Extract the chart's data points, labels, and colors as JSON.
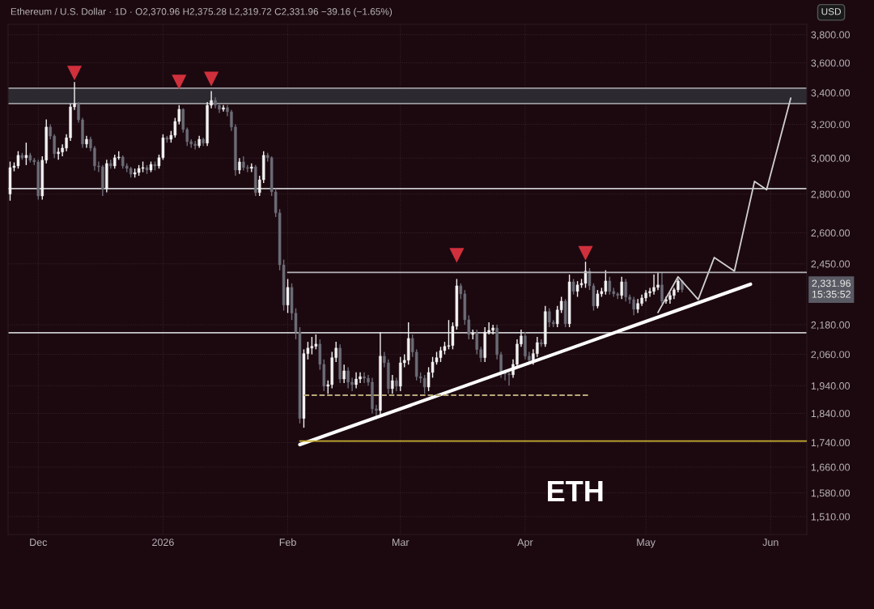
{
  "chart_data": {
    "type": "candlestick",
    "title": "Ethereum / U.S. Dollar · 1D · O2,370.96 H2,375.28 L2,319.72 C2,331.96 −39.16 (−1.65%)",
    "ylabel": "USD",
    "x": [
      "2025-11-24",
      "2025-11-25",
      "2025-11-26",
      "2025-11-27",
      "2025-11-28",
      "2025-11-29",
      "2025-11-30",
      "2025-12-01",
      "2025-12-02",
      "2025-12-03",
      "2025-12-04",
      "2025-12-05",
      "2025-12-06",
      "2025-12-07",
      "2025-12-08",
      "2025-12-09",
      "2025-12-10",
      "2025-12-11",
      "2025-12-12",
      "2025-12-13",
      "2025-12-14",
      "2025-12-15",
      "2025-12-16",
      "2025-12-17",
      "2025-12-18",
      "2025-12-19",
      "2025-12-20",
      "2025-12-21",
      "2025-12-22",
      "2025-12-23",
      "2025-12-24",
      "2025-12-25",
      "2025-12-26",
      "2025-12-27",
      "2025-12-28",
      "2025-12-29",
      "2025-12-30",
      "2025-12-31",
      "2026-01-01",
      "2026-01-02",
      "2026-01-03",
      "2026-01-04",
      "2026-01-05",
      "2026-01-06",
      "2026-01-07",
      "2026-01-08",
      "2026-01-09",
      "2026-01-10",
      "2026-01-11",
      "2026-01-12",
      "2026-01-13",
      "2026-01-14",
      "2026-01-15",
      "2026-01-16",
      "2026-01-17",
      "2026-01-18",
      "2026-01-19",
      "2026-01-20",
      "2026-01-21",
      "2026-01-22",
      "2026-01-23",
      "2026-01-24",
      "2026-01-25",
      "2026-01-26",
      "2026-01-27",
      "2026-01-28",
      "2026-01-29",
      "2026-01-30",
      "2026-01-31",
      "2026-02-01",
      "2026-02-02",
      "2026-02-03",
      "2026-02-04",
      "2026-02-05",
      "2026-02-06",
      "2026-02-07",
      "2026-02-08",
      "2026-02-09",
      "2026-02-10",
      "2026-02-11",
      "2026-02-12",
      "2026-02-13",
      "2026-02-14",
      "2026-02-15",
      "2026-02-16",
      "2026-02-17",
      "2026-02-18",
      "2026-02-19",
      "2026-02-20",
      "2026-02-21",
      "2026-02-22",
      "2026-02-23",
      "2026-02-24",
      "2026-02-25",
      "2026-02-26",
      "2026-02-27",
      "2026-02-28",
      "2026-03-01",
      "2026-03-02",
      "2026-03-03",
      "2026-03-04",
      "2026-03-05",
      "2026-03-06",
      "2026-03-07",
      "2026-03-08",
      "2026-03-09",
      "2026-03-10",
      "2026-03-11",
      "2026-03-12",
      "2026-03-13",
      "2026-03-14",
      "2026-03-15",
      "2026-03-16",
      "2026-03-17",
      "2026-03-18",
      "2026-03-19",
      "2026-03-20",
      "2026-03-21",
      "2026-03-22",
      "2026-03-23",
      "2026-03-24",
      "2026-03-25",
      "2026-03-26",
      "2026-03-27",
      "2026-03-28",
      "2026-03-29",
      "2026-03-30",
      "2026-03-31",
      "2026-04-01",
      "2026-04-02",
      "2026-04-03",
      "2026-04-04",
      "2026-04-05",
      "2026-04-06",
      "2026-04-07",
      "2026-04-08",
      "2026-04-09",
      "2026-04-10",
      "2026-04-11",
      "2026-04-12",
      "2026-04-13",
      "2026-04-14",
      "2026-04-15",
      "2026-04-16",
      "2026-04-17",
      "2026-04-18",
      "2026-04-19",
      "2026-04-20",
      "2026-04-21",
      "2026-04-22",
      "2026-04-23",
      "2026-04-24",
      "2026-04-25",
      "2026-04-26",
      "2026-04-27",
      "2026-04-28",
      "2026-04-29",
      "2026-04-30",
      "2026-05-01",
      "2026-05-02",
      "2026-05-03",
      "2026-05-04",
      "2026-05-05",
      "2026-05-06",
      "2026-05-07",
      "2026-05-08",
      "2026-05-09",
      "2026-05-10"
    ],
    "ohlc": [
      [
        2800,
        2980,
        2765,
        2946
      ],
      [
        2946,
        2975,
        2925,
        2955
      ],
      [
        2955,
        3040,
        2940,
        3016
      ],
      [
        3016,
        3030,
        2990,
        3002
      ],
      [
        3002,
        3090,
        2960,
        3016
      ],
      [
        3016,
        3030,
        2975,
        2988
      ],
      [
        2988,
        3000,
        2960,
        2978
      ],
      [
        2978,
        2990,
        2770,
        2790
      ],
      [
        2790,
        3010,
        2770,
        2988
      ],
      [
        2988,
        3230,
        2970,
        3184
      ],
      [
        3184,
        3200,
        3110,
        3129
      ],
      [
        3129,
        3140,
        3000,
        3025
      ],
      [
        3025,
        3060,
        2990,
        3035
      ],
      [
        3035,
        3080,
        3010,
        3058
      ],
      [
        3058,
        3140,
        3040,
        3119
      ],
      [
        3119,
        3330,
        3100,
        3309
      ],
      [
        3309,
        3470,
        3290,
        3330
      ],
      [
        3330,
        3340,
        3210,
        3228
      ],
      [
        3228,
        3240,
        3060,
        3082
      ],
      [
        3082,
        3130,
        3060,
        3110
      ],
      [
        3110,
        3125,
        3040,
        3058
      ],
      [
        3058,
        3070,
        2930,
        2955
      ],
      [
        2955,
        2980,
        2920,
        2950
      ],
      [
        2950,
        2960,
        2790,
        2829
      ],
      [
        2829,
        2990,
        2810,
        2969
      ],
      [
        2969,
        2990,
        2940,
        2955
      ],
      [
        2955,
        3020,
        2940,
        3002
      ],
      [
        3002,
        3040,
        2990,
        3006
      ],
      [
        3006,
        3015,
        2940,
        2955
      ],
      [
        2955,
        2970,
        2920,
        2941
      ],
      [
        2941,
        2950,
        2890,
        2909
      ],
      [
        2909,
        2940,
        2890,
        2918
      ],
      [
        2918,
        2960,
        2900,
        2941
      ],
      [
        2941,
        2980,
        2920,
        2946
      ],
      [
        2946,
        2960,
        2910,
        2932
      ],
      [
        2932,
        2980,
        2920,
        2964
      ],
      [
        2964,
        2980,
        2930,
        2955
      ],
      [
        2955,
        3020,
        2940,
        3002
      ],
      [
        3002,
        3140,
        2990,
        3119
      ],
      [
        3119,
        3130,
        3090,
        3110
      ],
      [
        3110,
        3160,
        3090,
        3134
      ],
      [
        3134,
        3240,
        3120,
        3218
      ],
      [
        3218,
        3320,
        3200,
        3294
      ],
      [
        3294,
        3300,
        3150,
        3169
      ],
      [
        3169,
        3180,
        3070,
        3096
      ],
      [
        3096,
        3110,
        3060,
        3082
      ],
      [
        3082,
        3100,
        3050,
        3072
      ],
      [
        3072,
        3130,
        3060,
        3110
      ],
      [
        3110,
        3120,
        3070,
        3087
      ],
      [
        3087,
        3340,
        3070,
        3319
      ],
      [
        3319,
        3410,
        3300,
        3350
      ],
      [
        3350,
        3370,
        3300,
        3319
      ],
      [
        3319,
        3330,
        3270,
        3294
      ],
      [
        3294,
        3320,
        3280,
        3304
      ],
      [
        3304,
        3320,
        3250,
        3278
      ],
      [
        3278,
        3290,
        3160,
        3184
      ],
      [
        3184,
        3200,
        2900,
        2932
      ],
      [
        2932,
        3000,
        2910,
        2978
      ],
      [
        2978,
        3010,
        2930,
        2946
      ],
      [
        2946,
        2960,
        2920,
        2941
      ],
      [
        2941,
        2970,
        2920,
        2950
      ],
      [
        2950,
        2960,
        2790,
        2808
      ],
      [
        2808,
        2900,
        2790,
        2878
      ],
      [
        2878,
        3040,
        2860,
        3016
      ],
      [
        3016,
        3030,
        2980,
        3002
      ],
      [
        3002,
        3010,
        2790,
        2812
      ],
      [
        2812,
        2830,
        2680,
        2701
      ],
      [
        2701,
        2720,
        2420,
        2445
      ],
      [
        2445,
        2470,
        2240,
        2264
      ],
      [
        2264,
        2380,
        2230,
        2342
      ],
      [
        2342,
        2360,
        2200,
        2229
      ],
      [
        2229,
        2250,
        2120,
        2150
      ],
      [
        2150,
        2170,
        1805,
        1822
      ],
      [
        1822,
        2080,
        1790,
        2063
      ],
      [
        2063,
        2110,
        2040,
        2085
      ],
      [
        2085,
        2130,
        2060,
        2092
      ],
      [
        2092,
        2140,
        2080,
        2101
      ],
      [
        2101,
        2120,
        2000,
        2021
      ],
      [
        2021,
        2040,
        1920,
        1938
      ],
      [
        1938,
        1960,
        1910,
        1944
      ],
      [
        1944,
        2070,
        1930,
        2047
      ],
      [
        2047,
        2110,
        2030,
        2085
      ],
      [
        2085,
        2100,
        1950,
        1965
      ],
      [
        1965,
        2020,
        1950,
        1996
      ],
      [
        1996,
        2010,
        1930,
        1953
      ],
      [
        1953,
        1970,
        1920,
        1944
      ],
      [
        1944,
        1990,
        1930,
        1965
      ],
      [
        1965,
        1990,
        1950,
        1974
      ],
      [
        1974,
        1990,
        1950,
        1968
      ],
      [
        1968,
        1980,
        1940,
        1953
      ],
      [
        1953,
        1970,
        1840,
        1856
      ],
      [
        1856,
        1870,
        1820,
        1850
      ],
      [
        1850,
        2150,
        1830,
        2053
      ],
      [
        2053,
        2070,
        2010,
        2027
      ],
      [
        2027,
        2040,
        1910,
        1929
      ],
      [
        1929,
        1980,
        1910,
        1959
      ],
      [
        1959,
        1970,
        1920,
        1938
      ],
      [
        1938,
        2050,
        1920,
        2027
      ],
      [
        2027,
        2060,
        2010,
        2037
      ],
      [
        2037,
        2190,
        2020,
        2124
      ],
      [
        2124,
        2140,
        2050,
        2069
      ],
      [
        2069,
        2080,
        1960,
        1974
      ],
      [
        1974,
        1990,
        1950,
        1968
      ],
      [
        1968,
        1980,
        1910,
        1935
      ],
      [
        1935,
        2010,
        1920,
        1990
      ],
      [
        1990,
        2050,
        1970,
        2030
      ],
      [
        2030,
        2070,
        2020,
        2047
      ],
      [
        2047,
        2090,
        2030,
        2075
      ],
      [
        2075,
        2110,
        2060,
        2092
      ],
      [
        2092,
        2200,
        2080,
        2095
      ],
      [
        2095,
        2190,
        2080,
        2174
      ],
      [
        2174,
        2380,
        2160,
        2349
      ],
      [
        2349,
        2360,
        2290,
        2313
      ],
      [
        2313,
        2330,
        2180,
        2201
      ],
      [
        2201,
        2220,
        2120,
        2140
      ],
      [
        2140,
        2160,
        2120,
        2144
      ],
      [
        2144,
        2160,
        2060,
        2079
      ],
      [
        2079,
        2090,
        2030,
        2047
      ],
      [
        2047,
        2170,
        2030,
        2150
      ],
      [
        2150,
        2190,
        2140,
        2157
      ],
      [
        2157,
        2180,
        2140,
        2167
      ],
      [
        2167,
        2180,
        2040,
        2059
      ],
      [
        2059,
        2070,
        1970,
        1990
      ],
      [
        1990,
        2000,
        1960,
        1984
      ],
      [
        1984,
        1990,
        1940,
        1981
      ],
      [
        1981,
        2040,
        1970,
        2021
      ],
      [
        2021,
        2120,
        2010,
        2101
      ],
      [
        2101,
        2160,
        2090,
        2134
      ],
      [
        2134,
        2150,
        2040,
        2053
      ],
      [
        2053,
        2070,
        2020,
        2037
      ],
      [
        2037,
        2080,
        2020,
        2063
      ],
      [
        2063,
        2130,
        2050,
        2107
      ],
      [
        2107,
        2120,
        2090,
        2101
      ],
      [
        2101,
        2260,
        2090,
        2236
      ],
      [
        2236,
        2250,
        2170,
        2191
      ],
      [
        2191,
        2200,
        2170,
        2184
      ],
      [
        2184,
        2260,
        2170,
        2243
      ],
      [
        2243,
        2300,
        2230,
        2281
      ],
      [
        2281,
        2290,
        2170,
        2184
      ],
      [
        2184,
        2400,
        2170,
        2367
      ],
      [
        2367,
        2380,
        2310,
        2324
      ],
      [
        2324,
        2370,
        2300,
        2353
      ],
      [
        2353,
        2380,
        2340,
        2360
      ],
      [
        2360,
        2460,
        2340,
        2416
      ],
      [
        2416,
        2430,
        2330,
        2349
      ],
      [
        2349,
        2360,
        2240,
        2260
      ],
      [
        2260,
        2330,
        2250,
        2313
      ],
      [
        2313,
        2340,
        2300,
        2324
      ],
      [
        2324,
        2420,
        2310,
        2371
      ],
      [
        2371,
        2390,
        2310,
        2324
      ],
      [
        2324,
        2340,
        2300,
        2313
      ],
      [
        2313,
        2320,
        2290,
        2306
      ],
      [
        2306,
        2390,
        2290,
        2367
      ],
      [
        2367,
        2380,
        2280,
        2299
      ],
      [
        2299,
        2310,
        2270,
        2288
      ],
      [
        2288,
        2300,
        2220,
        2246
      ],
      [
        2246,
        2290,
        2230,
        2271
      ],
      [
        2271,
        2310,
        2260,
        2295
      ],
      [
        2295,
        2330,
        2280,
        2317
      ],
      [
        2317,
        2340,
        2300,
        2324
      ],
      [
        2324,
        2400,
        2310,
        2342
      ],
      [
        2342,
        2410,
        2330,
        2353
      ],
      [
        2353,
        2410,
        2270,
        2281
      ],
      [
        2281,
        2300,
        2270,
        2288
      ],
      [
        2288,
        2320,
        2270,
        2306
      ],
      [
        2306,
        2340,
        2290,
        2331
      ],
      [
        2331,
        2380,
        2320,
        2370.96
      ],
      [
        2370.96,
        2375.28,
        2319.72,
        2331.96
      ]
    ],
    "series": [
      {
        "type": "line",
        "color": "#ffffff",
        "x": [
          "2026-02-04",
          "2026-05-27"
        ],
        "values": [
          1733,
          2356
        ]
      },
      {
        "type": "line",
        "color": "#d0d0d0",
        "x": [
          "2026-05-04",
          "2026-05-09",
          "2026-05-14",
          "2026-05-18",
          "2026-05-23",
          "2026-05-28",
          "2026-05-31",
          "2026-06-06"
        ],
        "values": [
          2232,
          2390,
          2288,
          2480,
          2416,
          2869,
          2824,
          3365
        ]
      },
      {
        "type": "line",
        "color": "#b4b4b8",
        "x": [
          "2026-02-01",
          "2026-06-10"
        ],
        "values": [
          2410,
          2410
        ]
      },
      {
        "type": "line",
        "color": "#c9b030",
        "x": [
          "2026-02-04",
          "2026-06-10"
        ],
        "values": [
          1745,
          1745
        ]
      },
      {
        "type": "line",
        "color": "#b8a878",
        "line_style": "dashed",
        "x": [
          "2026-02-05",
          "2026-04-17"
        ],
        "values": [
          1905,
          1905
        ]
      },
      {
        "type": "scatter",
        "color": "#d0303c",
        "marker": "triangle",
        "x": [
          "2025-12-10",
          "2026-01-05",
          "2026-01-13",
          "2026-03-15",
          "2026-04-16"
        ],
        "values": [
          3530,
          3470,
          3490,
          2490,
          2500
        ]
      }
    ],
    "ref_lines": [
      {
        "axis": "y",
        "value": 3330,
        "color": "#9a9a9e"
      },
      {
        "axis": "y",
        "value": 3430,
        "color": "#9a9a9e"
      },
      {
        "axis": "y",
        "value": 2830,
        "color": "#c8c8cc"
      },
      {
        "axis": "y",
        "value": 2147,
        "color": "#c8c8cc"
      }
    ],
    "bands": [
      {
        "axis": "y",
        "from": 3330,
        "to": 3430,
        "color": "#2c2a30"
      }
    ],
    "annotations": [
      "ETH",
      "2,331.96\n15:35:52"
    ],
    "log": "y",
    "grid": true,
    "xlim": [
      "2025-11-23T12:00",
      "2026-06-10"
    ],
    "xticks": [
      {
        "value": "2025-12-01",
        "label": "Dec"
      },
      {
        "value": "2026-01-01",
        "label": "2026"
      },
      {
        "value": "2026-02-01",
        "label": "Feb"
      },
      {
        "value": "2026-03-01",
        "label": "Mar"
      },
      {
        "value": "2026-04-01",
        "label": "Apr"
      },
      {
        "value": "2026-05-01",
        "label": "May"
      },
      {
        "value": "2026-06-01",
        "label": "Jun"
      }
    ],
    "ylim": [
      1459,
      3876
    ],
    "yticks": [
      {
        "value": 1510,
        "label": "1,510.00"
      },
      {
        "value": 1580,
        "label": "1,580.00"
      },
      {
        "value": 1660,
        "label": "1,660.00"
      },
      {
        "value": 1740,
        "label": "1,740.00"
      },
      {
        "value": 1840,
        "label": "1,840.00"
      },
      {
        "value": 1940,
        "label": "1,940.00"
      },
      {
        "value": 2060,
        "label": "2,060.00"
      },
      {
        "value": 2180,
        "label": "2,180.00"
      },
      {
        "value": 2450,
        "label": "2,450.00"
      },
      {
        "value": 2600,
        "label": "2,600.00"
      },
      {
        "value": 2800,
        "label": "2,800.00"
      },
      {
        "value": 3000,
        "label": "3,000.00"
      },
      {
        "value": 3200,
        "label": "3,200.00"
      },
      {
        "value": 3400,
        "label": "3,400.00"
      },
      {
        "value": 3600,
        "label": "3,600.00"
      },
      {
        "value": 3800,
        "label": "3,800.00"
      }
    ]
  }
}
